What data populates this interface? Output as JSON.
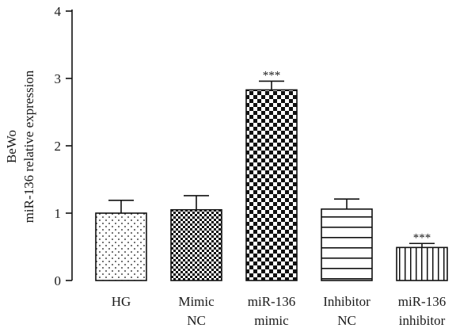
{
  "chart_data": {
    "type": "bar",
    "ylabel_lines": [
      "BeWo",
      "miR-136 relative expression"
    ],
    "ylim": [
      0,
      4
    ],
    "yticks": [
      "0",
      "1",
      "2",
      "3",
      "4"
    ],
    "categories": [
      [
        "HG"
      ],
      [
        "Mimic",
        "NC"
      ],
      [
        "miR-136",
        "mimic"
      ],
      [
        "Inhibitor",
        "NC"
      ],
      [
        "miR-136",
        "inhibitor"
      ]
    ],
    "values": [
      1.0,
      1.05,
      2.83,
      1.06,
      0.49
    ],
    "errors": [
      0.19,
      0.21,
      0.13,
      0.15,
      0.06
    ],
    "significance": [
      "",
      "",
      "***",
      "",
      "***"
    ],
    "patterns": [
      "dots",
      "small-checker",
      "large-checker",
      "horizontal-lines",
      "vertical-lines"
    ],
    "grid": false,
    "colors": {
      "bar_stroke": "#111111",
      "fill": "#111111",
      "background": "#ffffff"
    }
  }
}
